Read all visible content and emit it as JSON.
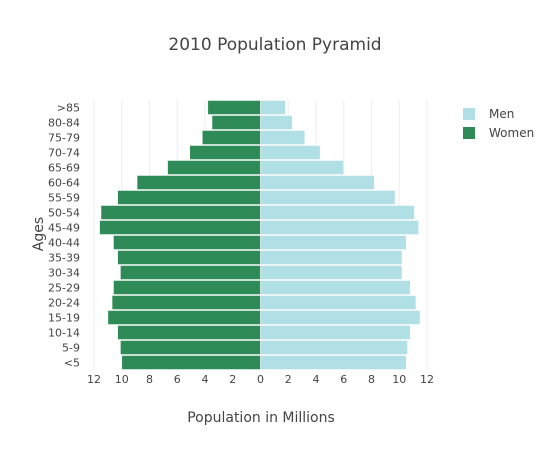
{
  "chart_data": {
    "type": "bar",
    "orientation": "horizontal",
    "title": "2010 Population Pyramid",
    "xlabel": "Population in Millions",
    "ylabel": "Ages",
    "categories": [
      "<5",
      "5-9",
      "10-14",
      "15-19",
      "20-24",
      "25-29",
      "30-34",
      "35-39",
      "40-44",
      "45-49",
      "50-54",
      "55-59",
      "60-64",
      "65-69",
      "70-74",
      "75-79",
      "80-84",
      ">85"
    ],
    "series": [
      {
        "name": "Men",
        "color": "#b0dfe5",
        "side": "right",
        "values": [
          10.5,
          10.6,
          10.8,
          11.5,
          11.2,
          10.8,
          10.2,
          10.2,
          10.5,
          11.4,
          11.1,
          9.7,
          8.2,
          6.0,
          4.3,
          3.2,
          2.3,
          1.8
        ]
      },
      {
        "name": "Women",
        "color": "#2e8b57",
        "side": "left",
        "values": [
          10.0,
          10.1,
          10.3,
          11.0,
          10.7,
          10.6,
          10.1,
          10.3,
          10.6,
          11.6,
          11.5,
          10.3,
          8.9,
          6.7,
          5.1,
          4.2,
          3.5,
          3.8
        ]
      }
    ],
    "xlim": [
      -12,
      12
    ],
    "xticks": [
      -12,
      -10,
      -8,
      -6,
      -4,
      -2,
      0,
      2,
      4,
      6,
      8,
      10,
      12
    ],
    "xtick_labels": [
      "12",
      "10",
      "8",
      "6",
      "4",
      "2",
      "0",
      "2",
      "4",
      "6",
      "8",
      "10",
      "12"
    ],
    "grid": true,
    "legend_position": "top-right"
  }
}
